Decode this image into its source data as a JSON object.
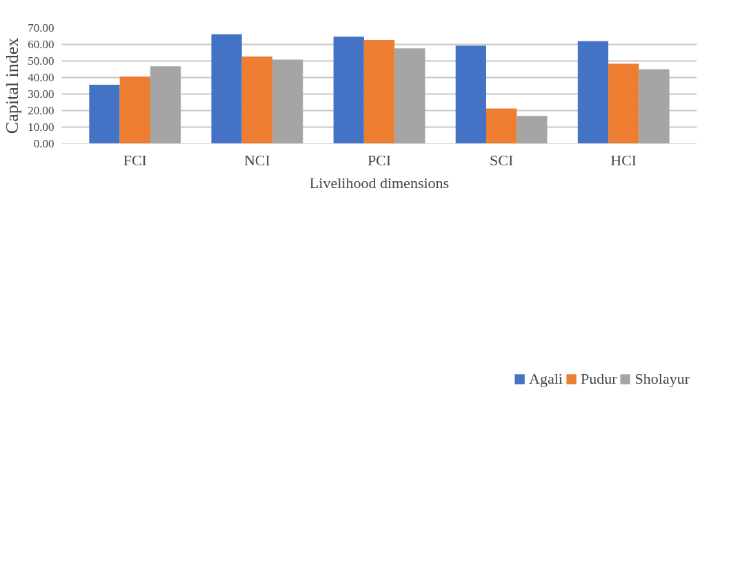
{
  "chart_data": {
    "type": "bar",
    "xlabel": "Livelihood dimensions",
    "ylabel": "Capital index",
    "categories": [
      "FCI",
      "NCI",
      "PCI",
      "SCI",
      "HCI"
    ],
    "series": [
      {
        "name": "Agali",
        "color": "#4472c4",
        "values": [
          35.6,
          66.1,
          64.7,
          59.3,
          62.0
        ]
      },
      {
        "name": "Pudur",
        "color": "#ed7d31",
        "values": [
          40.5,
          52.7,
          62.7,
          21.3,
          48.3
        ]
      },
      {
        "name": "Sholayur",
        "color": "#a5a5a5",
        "values": [
          46.8,
          50.8,
          57.6,
          16.8,
          45.0
        ]
      }
    ],
    "ylim": [
      0,
      70
    ],
    "yticks": [
      {
        "value": 0,
        "label": "0.00"
      },
      {
        "value": 10,
        "label": "10.00"
      },
      {
        "value": 20,
        "label": "20.00"
      },
      {
        "value": 30,
        "label": "30.00"
      },
      {
        "value": 40,
        "label": "40.00"
      },
      {
        "value": 50,
        "label": "50.00"
      },
      {
        "value": 60,
        "label": "60.00"
      },
      {
        "value": 70,
        "label": "70.00"
      }
    ],
    "grid": "y",
    "legend": "bottom"
  }
}
